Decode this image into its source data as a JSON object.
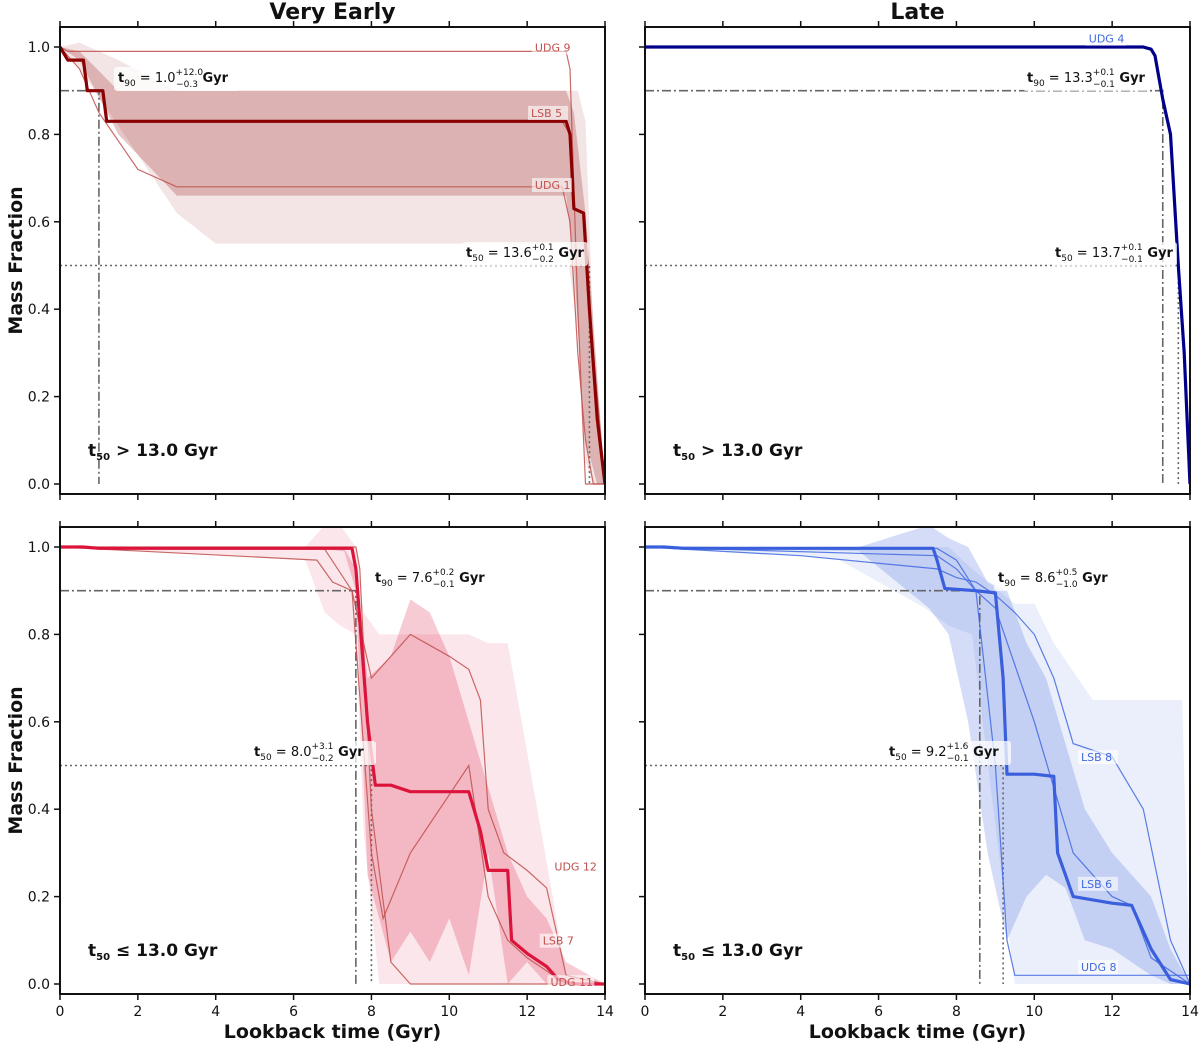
{
  "chart_data": [
    {
      "type": "line",
      "panel": "top-left",
      "title": "Very Early",
      "xlabel": "",
      "ylabel": "Mass Fraction",
      "xlim": [
        0,
        14
      ],
      "ylim": [
        0,
        1.04
      ],
      "xticks": [
        "0",
        "2",
        "4",
        "6",
        "8",
        "10",
        "12",
        "14"
      ],
      "yticks": [
        "0.0",
        "0.2",
        "0.4",
        "0.6",
        "0.8",
        "1.0"
      ],
      "color": "#8b0000",
      "galaxy_color": "#c0504d",
      "category_label": "t50 > 13.0 Gyr",
      "t90": {
        "value": 1.0,
        "plus": "+12.0",
        "minus": "−0.3",
        "label": "t90 = 1.0 Gyr"
      },
      "t50": {
        "value": 13.6,
        "plus": "+0.1",
        "minus": "−0.2",
        "label": "t50 = 13.6 Gyr"
      },
      "median": {
        "x": [
          0,
          0.2,
          0.6,
          0.7,
          0.8,
          1.1,
          1.2,
          12.9,
          13.0,
          13.1,
          13.2,
          13.45,
          13.6,
          13.8,
          14.0
        ],
        "y": [
          1.0,
          0.97,
          0.97,
          0.9,
          0.9,
          0.9,
          0.83,
          0.83,
          0.83,
          0.8,
          0.63,
          0.62,
          0.4,
          0.15,
          0.0
        ]
      },
      "band_outer": {
        "x": [
          0,
          0.5,
          1.5,
          3.0,
          4.0,
          6.0,
          8.0,
          10.0,
          12.0,
          13.0,
          13.3,
          13.5,
          13.7,
          14.0
        ],
        "upper": [
          1.0,
          1.01,
          0.97,
          0.9,
          0.9,
          0.9,
          0.9,
          0.9,
          0.9,
          0.9,
          0.9,
          0.83,
          0.35,
          0.0
        ],
        "lower": [
          1.0,
          0.95,
          0.82,
          0.62,
          0.55,
          0.55,
          0.55,
          0.55,
          0.55,
          0.55,
          0.35,
          0.05,
          0.0,
          0.0
        ]
      },
      "band_inner": {
        "x": [
          0,
          0.5,
          1.5,
          3.0,
          6.0,
          10.0,
          12.0,
          13.0,
          13.2,
          13.5,
          13.8,
          14.0
        ],
        "upper": [
          1.0,
          0.99,
          0.9,
          0.9,
          0.9,
          0.9,
          0.9,
          0.9,
          0.85,
          0.62,
          0.25,
          0.0
        ],
        "lower": [
          1.0,
          0.97,
          0.8,
          0.66,
          0.66,
          0.66,
          0.66,
          0.66,
          0.5,
          0.1,
          0.0,
          0.0
        ]
      },
      "galaxies": [
        {
          "name": "UDG 9",
          "x": [
            0,
            0.2,
            1.0,
            12.9,
            13.0,
            13.1,
            13.3,
            13.5,
            14.0
          ],
          "y": [
            1.0,
            0.99,
            0.99,
            0.99,
            0.99,
            0.95,
            0.4,
            0.0,
            0.0
          ],
          "lx": 12.2,
          "ly": 0.99
        },
        {
          "name": "LSB 5",
          "x": [
            0,
            0.2,
            0.6,
            0.7,
            0.8,
            1.1,
            1.2,
            12.9,
            13.1,
            13.2,
            13.45,
            13.6,
            14.0
          ],
          "y": [
            1.0,
            0.97,
            0.97,
            0.9,
            0.9,
            0.9,
            0.83,
            0.83,
            0.8,
            0.63,
            0.62,
            0.4,
            0.0
          ],
          "lx": 12.1,
          "ly": 0.84
        },
        {
          "name": "UDG 1",
          "x": [
            0,
            0.5,
            1.0,
            2.0,
            3.0,
            12.0,
            12.9,
            13.1,
            13.3,
            13.5,
            13.7,
            14.0
          ],
          "y": [
            1.0,
            0.95,
            0.85,
            0.72,
            0.68,
            0.68,
            0.68,
            0.6,
            0.3,
            0.1,
            0.0,
            0.0
          ],
          "lx": 12.2,
          "ly": 0.675
        }
      ]
    },
    {
      "type": "line",
      "panel": "top-right",
      "title": "Late",
      "xlabel": "",
      "ylabel": "",
      "xlim": [
        0,
        14
      ],
      "ylim": [
        0,
        1.04
      ],
      "xticks": [
        "0",
        "2",
        "4",
        "6",
        "8",
        "10",
        "12",
        "14"
      ],
      "yticks": [
        "0.0",
        "0.2",
        "0.4",
        "0.6",
        "0.8",
        "1.0"
      ],
      "color": "#00008b",
      "galaxy_color": "#4169e1",
      "category_label": "t50 > 13.0 Gyr",
      "t90": {
        "value": 13.3,
        "plus": "+0.1",
        "minus": "−0.1",
        "label": "t90 = 13.3 Gyr"
      },
      "t50": {
        "value": 13.7,
        "plus": "+0.1",
        "minus": "−0.1",
        "label": "t50 = 13.7 Gyr"
      },
      "median": {
        "x": [
          0,
          12.8,
          13.0,
          13.1,
          13.2,
          13.3,
          13.5,
          13.7,
          13.85,
          14.0
        ],
        "y": [
          1.0,
          1.0,
          0.995,
          0.98,
          0.93,
          0.88,
          0.8,
          0.5,
          0.3,
          0.0
        ]
      },
      "band_outer": null,
      "band_inner": null,
      "galaxies": [
        {
          "name": "UDG 4",
          "x": [],
          "y": [],
          "lx": 11.4,
          "ly": 1.01
        }
      ]
    },
    {
      "type": "line",
      "panel": "bottom-left",
      "title": "",
      "xlabel": "Lookback time (Gyr)",
      "ylabel": "Mass Fraction",
      "xlim": [
        0,
        14
      ],
      "ylim": [
        0,
        1.04
      ],
      "xticks": [
        "0",
        "2",
        "4",
        "6",
        "8",
        "10",
        "12",
        "14"
      ],
      "yticks": [
        "0.0",
        "0.2",
        "0.4",
        "0.6",
        "0.8",
        "1.0"
      ],
      "color": "#dc143c",
      "galaxy_color": "#c0504d",
      "category_label": "t50 ≤ 13.0 Gyr",
      "t90": {
        "value": 7.6,
        "plus": "+0.2",
        "minus": "−0.1",
        "label": "t90 = 7.6 Gyr"
      },
      "t50": {
        "value": 8.0,
        "plus": "+3.1",
        "minus": "−0.2",
        "label": "t50 = 8.0 Gyr"
      },
      "median": {
        "x": [
          0,
          0.6,
          1.0,
          6.5,
          7.5,
          7.6,
          7.9,
          8.1,
          8.5,
          9.0,
          10.5,
          10.8,
          11.0,
          11.5,
          11.6,
          12.0,
          12.5,
          12.8,
          13.2,
          14.0
        ],
        "y": [
          1.0,
          1.0,
          0.997,
          0.997,
          0.997,
          0.95,
          0.6,
          0.455,
          0.455,
          0.44,
          0.44,
          0.35,
          0.26,
          0.26,
          0.1,
          0.07,
          0.04,
          0.01,
          0.0,
          0.0
        ]
      },
      "band_outer": {
        "x": [
          0,
          6.3,
          6.8,
          7.2,
          7.6,
          7.8,
          8.2,
          9.0,
          10.5,
          11.0,
          11.5,
          12.5,
          13.0,
          14.0
        ],
        "upper": [
          1.0,
          1.0,
          1.05,
          1.05,
          1.0,
          0.85,
          0.8,
          0.8,
          0.8,
          0.78,
          0.78,
          0.28,
          0.02,
          0.0
        ],
        "lower": [
          1.0,
          0.97,
          0.85,
          0.82,
          0.8,
          0.35,
          0.0,
          0.0,
          0.0,
          0.0,
          0.0,
          0.0,
          0.0,
          0.0
        ]
      },
      "band_inner": {
        "x": [
          0,
          6.6,
          7.3,
          7.6,
          7.9,
          8.5,
          9.0,
          9.5,
          10.0,
          10.5,
          11.0,
          11.5,
          12.0,
          12.5,
          13.0,
          14.0
        ],
        "upper": [
          1.0,
          0.997,
          0.997,
          0.95,
          0.7,
          0.75,
          0.88,
          0.85,
          0.75,
          0.6,
          0.45,
          0.3,
          0.2,
          0.15,
          0.05,
          0.0
        ],
        "lower": [
          1.0,
          0.997,
          0.99,
          0.9,
          0.25,
          0.05,
          0.12,
          0.05,
          0.15,
          0.02,
          0.3,
          0.0,
          0.05,
          0.0,
          0.0,
          0.0
        ]
      },
      "galaxies": [
        {
          "name": "UDG 12",
          "x": [
            0,
            6.8,
            7.5,
            8.0,
            9.0,
            10.0,
            10.5,
            10.8,
            11.0,
            11.4,
            12.0,
            12.5,
            13.0,
            14.0
          ],
          "y": [
            1.0,
            0.995,
            0.9,
            0.7,
            0.8,
            0.75,
            0.72,
            0.65,
            0.4,
            0.3,
            0.26,
            0.22,
            0.02,
            0.0
          ],
          "lx": 12.7,
          "ly": 0.26
        },
        {
          "name": "LSB 7",
          "x": [
            0,
            6.6,
            7.0,
            7.5,
            8.0,
            8.3,
            9.0,
            10.5,
            11.0,
            11.5,
            12.0,
            12.5,
            13.0,
            14.0
          ],
          "y": [
            1.0,
            0.97,
            0.92,
            0.9,
            0.3,
            0.15,
            0.3,
            0.5,
            0.2,
            0.1,
            0.06,
            0.03,
            0.0,
            0.0
          ],
          "lx": 12.4,
          "ly": 0.09
        },
        {
          "name": "UDG 11",
          "x": [
            0,
            7.6,
            7.7,
            8.0,
            8.5,
            9.0,
            12.0,
            14.0
          ],
          "y": [
            1.0,
            1.0,
            0.95,
            0.4,
            0.05,
            0.0,
            0.0,
            0.0
          ],
          "lx": 12.6,
          "ly": -0.005
        }
      ]
    },
    {
      "type": "line",
      "panel": "bottom-right",
      "title": "",
      "xlabel": "Lookback time (Gyr)",
      "ylabel": "",
      "xlim": [
        0,
        14
      ],
      "ylim": [
        0,
        1.04
      ],
      "xticks": [
        "0",
        "2",
        "4",
        "6",
        "8",
        "10",
        "12",
        "14"
      ],
      "yticks": [
        "0.0",
        "0.2",
        "0.4",
        "0.6",
        "0.8",
        "1.0"
      ],
      "color": "#3a5fdc",
      "galaxy_color": "#4169e1",
      "category_label": "t50 ≤ 13.0 Gyr",
      "t90": {
        "value": 8.6,
        "plus": "+0.5",
        "minus": "−1.0",
        "label": "t90 = 8.6 Gyr"
      },
      "t50": {
        "value": 9.2,
        "plus": "+1.6",
        "minus": "−0.1",
        "label": "t50 = 9.2 Gyr"
      },
      "median": {
        "x": [
          0,
          0.5,
          1.0,
          5.0,
          7.4,
          7.5,
          7.7,
          8.5,
          9.0,
          9.2,
          9.3,
          10.0,
          10.5,
          10.6,
          11.0,
          12.0,
          12.5,
          13.0,
          13.5,
          14.0
        ],
        "y": [
          1.0,
          1.0,
          0.997,
          0.997,
          0.997,
          0.97,
          0.905,
          0.9,
          0.895,
          0.7,
          0.48,
          0.48,
          0.475,
          0.3,
          0.2,
          0.185,
          0.18,
          0.08,
          0.01,
          0.0
        ]
      },
      "band_outer": {
        "x": [
          0,
          2.0,
          4.0,
          5.0,
          7.2,
          7.8,
          8.4,
          9.5,
          10.0,
          10.5,
          11.5,
          12.5,
          13.0,
          13.8,
          14.0
        ],
        "upper": [
          1.0,
          1.0,
          1.0,
          1.0,
          1.0,
          1.0,
          0.95,
          0.87,
          0.87,
          0.78,
          0.65,
          0.65,
          0.65,
          0.65,
          0.0
        ],
        "lower": [
          1.0,
          0.99,
          0.98,
          0.97,
          0.86,
          0.82,
          0.8,
          0.0,
          0.0,
          0.0,
          0.0,
          0.0,
          0.0,
          0.0,
          0.0
        ]
      },
      "band_inner": {
        "x": [
          0,
          3.0,
          5.5,
          7.3,
          7.8,
          8.3,
          8.8,
          9.3,
          9.8,
          10.3,
          10.8,
          11.3,
          12.0,
          12.5,
          13.0,
          13.5,
          14.0
        ],
        "upper": [
          1.0,
          1.0,
          1.0,
          1.05,
          1.02,
          1.0,
          0.92,
          0.9,
          0.78,
          0.7,
          0.55,
          0.4,
          0.3,
          0.25,
          0.2,
          0.08,
          0.0
        ],
        "lower": [
          1.0,
          0.995,
          0.99,
          0.86,
          0.8,
          0.6,
          0.3,
          0.1,
          0.2,
          0.25,
          0.22,
          0.1,
          0.08,
          0.05,
          0.02,
          0.0,
          0.0
        ]
      },
      "galaxies": [
        {
          "name": "LSB 8",
          "x": [
            0,
            4.0,
            7.5,
            8.0,
            8.5,
            9.0,
            9.5,
            10.0,
            10.5,
            11.0,
            12.0,
            12.8,
            13.5,
            14.0
          ],
          "y": [
            1.0,
            0.98,
            0.95,
            0.93,
            0.92,
            0.89,
            0.85,
            0.8,
            0.7,
            0.55,
            0.52,
            0.4,
            0.1,
            0.0
          ],
          "lx": 11.2,
          "ly": 0.51
        },
        {
          "name": "LSB 6",
          "x": [
            0,
            5.0,
            7.5,
            8.0,
            8.5,
            9.0,
            10.0,
            10.5,
            11.0,
            12.0,
            12.5,
            13.0,
            14.0
          ],
          "y": [
            1.0,
            0.997,
            0.997,
            0.97,
            0.9,
            0.86,
            0.6,
            0.45,
            0.3,
            0.2,
            0.18,
            0.06,
            0.0
          ],
          "lx": 11.2,
          "ly": 0.22
        },
        {
          "name": "UDG 8",
          "x": [
            0,
            7.5,
            8.0,
            8.5,
            9.0,
            9.3,
            9.5,
            10.0,
            14.0
          ],
          "y": [
            1.0,
            0.98,
            0.95,
            0.9,
            0.5,
            0.1,
            0.02,
            0.02,
            0.02
          ],
          "lx": 11.2,
          "ly": 0.03
        }
      ]
    }
  ]
}
